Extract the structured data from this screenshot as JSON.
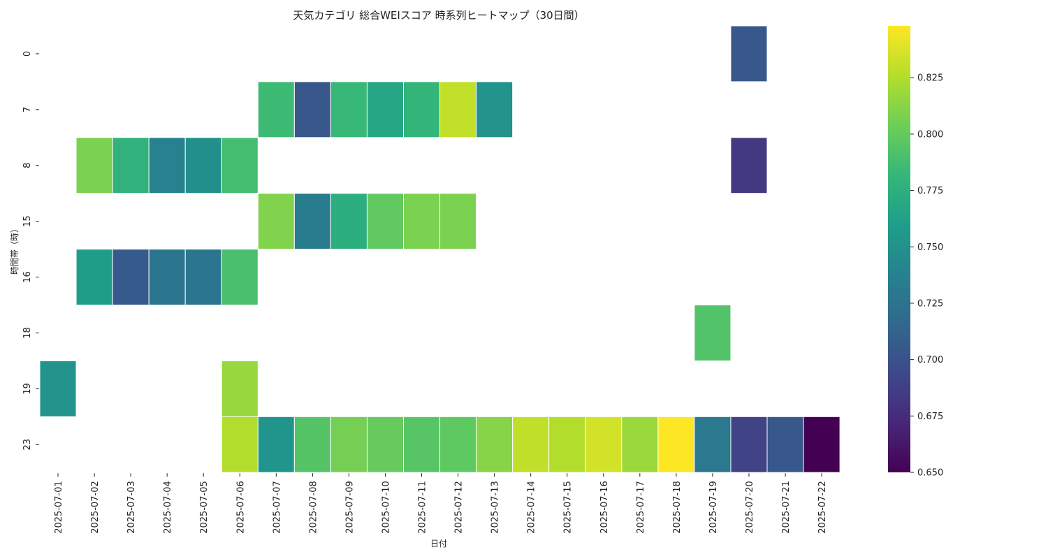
{
  "chart_data": {
    "type": "heatmap",
    "title": "天気カテゴリ 総合WEIスコア 時系列ヒートマップ（30日間）",
    "xlabel": "日付",
    "ylabel": "時間帯（時）",
    "x": [
      "2025-07-01",
      "2025-07-02",
      "2025-07-03",
      "2025-07-04",
      "2025-07-05",
      "2025-07-06",
      "2025-07-07",
      "2025-07-08",
      "2025-07-09",
      "2025-07-10",
      "2025-07-11",
      "2025-07-12",
      "2025-07-13",
      "2025-07-14",
      "2025-07-15",
      "2025-07-16",
      "2025-07-17",
      "2025-07-18",
      "2025-07-19",
      "2025-07-20",
      "2025-07-21",
      "2025-07-22"
    ],
    "y": [
      "0",
      "7",
      "8",
      "15",
      "16",
      "18",
      "19",
      "23"
    ],
    "values": [
      [
        null,
        null,
        null,
        null,
        null,
        null,
        null,
        null,
        null,
        null,
        null,
        null,
        null,
        null,
        null,
        null,
        null,
        null,
        null,
        0.705,
        null,
        null
      ],
      [
        null,
        null,
        null,
        null,
        null,
        null,
        0.785,
        0.705,
        0.783,
        0.767,
        0.78,
        0.83,
        0.752,
        null,
        null,
        null,
        null,
        null,
        null,
        null,
        null,
        null
      ],
      [
        null,
        0.808,
        0.778,
        0.737,
        0.748,
        0.788,
        null,
        null,
        null,
        null,
        null,
        null,
        null,
        null,
        null,
        null,
        null,
        null,
        null,
        0.683,
        null,
        null
      ],
      [
        null,
        null,
        null,
        null,
        null,
        null,
        0.81,
        0.733,
        0.774,
        0.799,
        0.808,
        0.808,
        null,
        null,
        null,
        null,
        null,
        null,
        null,
        null,
        null,
        null
      ],
      [
        null,
        0.759,
        0.706,
        0.728,
        0.728,
        0.79,
        null,
        null,
        null,
        null,
        null,
        null,
        null,
        null,
        null,
        null,
        null,
        null,
        null,
        null,
        null,
        null
      ],
      [
        null,
        null,
        null,
        null,
        null,
        null,
        null,
        null,
        null,
        null,
        null,
        null,
        null,
        null,
        null,
        null,
        null,
        null,
        0.793,
        null,
        null,
        null
      ],
      [
        0.752,
        null,
        null,
        null,
        null,
        0.817,
        null,
        null,
        null,
        null,
        null,
        null,
        null,
        null,
        null,
        null,
        null,
        null,
        null,
        null,
        null,
        null
      ],
      [
        null,
        null,
        null,
        null,
        null,
        0.825,
        0.753,
        0.794,
        0.806,
        0.801,
        0.795,
        0.798,
        0.812,
        0.829,
        0.825,
        0.835,
        0.818,
        0.848,
        0.73,
        0.69,
        0.705,
        0.65
      ]
    ],
    "colorbar": {
      "vmin": 0.65,
      "vmax": 0.848,
      "ticks": [
        0.65,
        0.675,
        0.7,
        0.725,
        0.75,
        0.775,
        0.8,
        0.825
      ],
      "tick_labels": [
        "0.650",
        "0.675",
        "0.700",
        "0.725",
        "0.750",
        "0.775",
        "0.800",
        "0.825"
      ]
    },
    "colormap": "viridis",
    "colormap_stops": [
      "#440154",
      "#482878",
      "#3e4989",
      "#31688e",
      "#26828e",
      "#1f9e89",
      "#35b779",
      "#6ece58",
      "#b5de2b",
      "#fde725"
    ]
  }
}
